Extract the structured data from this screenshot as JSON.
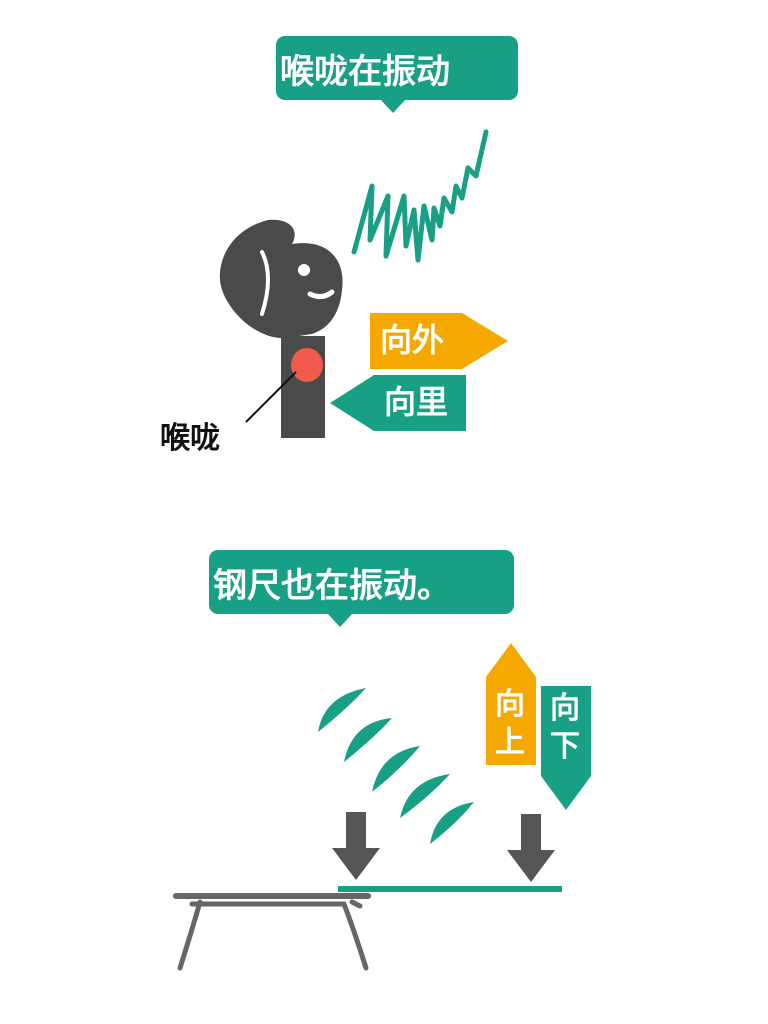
{
  "colors": {
    "teal": "#17a085",
    "orange": "#f5a800",
    "figure": "#4a4a4a",
    "throat": "#f25b4b",
    "arrow": "#555555",
    "table": "#666666"
  },
  "top_panel": {
    "bubble_text": "喉咙在振动",
    "outward_label": "向外",
    "inward_label": "向里",
    "throat_label": "喉咙"
  },
  "bottom_panel": {
    "bubble_text": "钢尺也在振动。",
    "up_label_1": "向",
    "up_label_2": "上",
    "down_label_1": "向",
    "down_label_2": "下"
  },
  "icons": [
    "person-head-icon",
    "sound-wave-icon",
    "down-arrow-icon",
    "table-icon",
    "steel-ruler-icon"
  ]
}
